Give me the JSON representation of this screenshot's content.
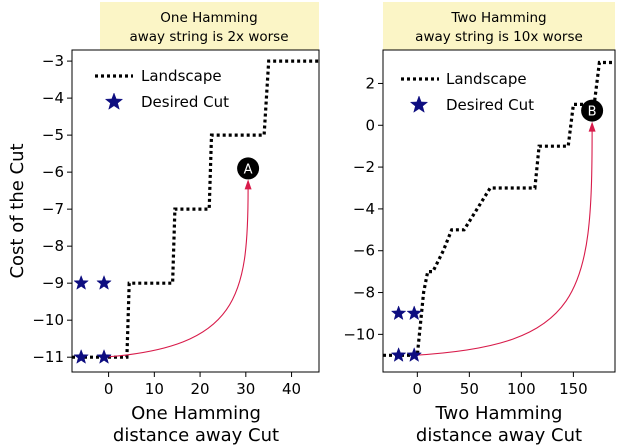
{
  "ylabel": "Cost of the Cut",
  "chart_data": [
    {
      "type": "line",
      "title_lines": [
        "One Hamming",
        "away string is 2x worse"
      ],
      "xlabel_lines": [
        "One Hamming",
        "distance away Cut"
      ],
      "xlim": [
        -8,
        46
      ],
      "ylim": [
        -11.4,
        -2.7
      ],
      "xticks": [
        0,
        10,
        20,
        30,
        40
      ],
      "yticks": [
        -11,
        -10,
        -9,
        -8,
        -7,
        -6,
        -5,
        -4,
        -3
      ],
      "landscape": {
        "name": "Landscape",
        "x": [
          -8,
          0,
          4,
          4.5,
          14,
          14.5,
          22,
          22.5,
          30,
          31,
          34,
          35,
          46
        ],
        "y": [
          -11,
          -11,
          -11,
          -9,
          -9,
          -7,
          -7,
          -5,
          -5,
          -5,
          -5,
          -3,
          -3
        ]
      },
      "desired_cut": {
        "name": "Desired Cut",
        "x": [
          -6,
          -1,
          -6,
          -1
        ],
        "y": [
          -9,
          -9,
          -11,
          -11
        ]
      },
      "annotation": {
        "label": "A",
        "x": 30.5,
        "y": -5.9,
        "from_x": -1,
        "from_y": -11
      }
    },
    {
      "type": "line",
      "title_lines": [
        "Two Hamming",
        "away string is 10x worse"
      ],
      "xlabel_lines": [
        "Two Hamming",
        "distance away Cut"
      ],
      "xlim": [
        -33,
        190
      ],
      "ylim": [
        -11.8,
        3.6
      ],
      "xticks": [
        0,
        50,
        100,
        150
      ],
      "yticks": [
        -10,
        -8,
        -6,
        -4,
        -2,
        0,
        2
      ],
      "landscape": {
        "name": "Landscape",
        "x": [
          -33,
          0,
          6,
          10,
          15,
          25,
          33,
          45,
          70,
          80,
          113,
          117,
          145,
          150,
          170,
          175,
          190
        ],
        "y": [
          -11,
          -11,
          -8,
          -7,
          -7,
          -6,
          -5,
          -5,
          -3,
          -3,
          -3,
          -1,
          -1,
          1,
          1,
          3,
          3
        ]
      },
      "desired_cut": {
        "name": "Desired Cut",
        "x": [
          -18,
          -3,
          -18,
          -3
        ],
        "y": [
          -9,
          -9,
          -11,
          -11
        ]
      },
      "annotation": {
        "label": "B",
        "x": 168,
        "y": 0.7,
        "from_x": -3,
        "from_y": -11
      }
    }
  ]
}
